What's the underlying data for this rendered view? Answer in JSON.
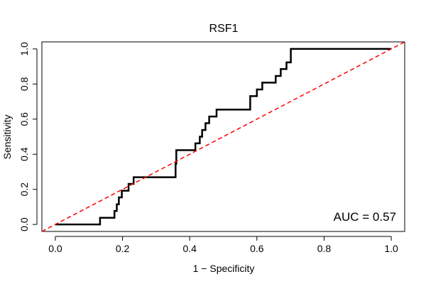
{
  "chart_data": {
    "type": "line",
    "title": "RSF1",
    "xlabel": "1 − Specificity",
    "ylabel": "Sensitivity",
    "xlim": [
      -0.04,
      1.04
    ],
    "ylim": [
      -0.04,
      1.04
    ],
    "x_ticks": [
      0.0,
      0.2,
      0.4,
      0.6,
      0.8,
      1.0
    ],
    "x_tick_labels": [
      "0.0",
      "0.2",
      "0.4",
      "0.6",
      "0.8",
      "1.0"
    ],
    "y_ticks": [
      0.0,
      0.2,
      0.4,
      0.6,
      0.8,
      1.0
    ],
    "y_tick_labels": [
      "0.0",
      "0.2",
      "0.4",
      "0.6",
      "0.8",
      "1.0"
    ],
    "grid": false,
    "annotation": "AUC = 0.57",
    "series": [
      {
        "color": "#000000",
        "style": "solid-step",
        "x": [
          0.0,
          0.133,
          0.133,
          0.176,
          0.176,
          0.183,
          0.183,
          0.189,
          0.189,
          0.198,
          0.198,
          0.218,
          0.218,
          0.233,
          0.233,
          0.247,
          0.247,
          0.358,
          0.358,
          0.36,
          0.36,
          0.417,
          0.417,
          0.43,
          0.43,
          0.437,
          0.437,
          0.447,
          0.447,
          0.458,
          0.458,
          0.48,
          0.48,
          0.58,
          0.58,
          0.6,
          0.6,
          0.616,
          0.616,
          0.656,
          0.656,
          0.671,
          0.671,
          0.688,
          0.688,
          0.701,
          0.701,
          1.0
        ],
        "y": [
          0.0,
          0.0,
          0.038,
          0.038,
          0.077,
          0.077,
          0.115,
          0.115,
          0.154,
          0.154,
          0.192,
          0.192,
          0.231,
          0.231,
          0.269,
          0.269,
          0.269,
          0.269,
          0.346,
          0.346,
          0.423,
          0.423,
          0.462,
          0.462,
          0.5,
          0.5,
          0.538,
          0.538,
          0.577,
          0.577,
          0.615,
          0.615,
          0.654,
          0.654,
          0.731,
          0.731,
          0.769,
          0.769,
          0.808,
          0.808,
          0.846,
          0.846,
          0.885,
          0.885,
          0.923,
          0.923,
          1.0,
          1.0
        ]
      },
      {
        "color": "#ff0000",
        "style": "dashed",
        "x": [
          -0.04,
          1.04
        ],
        "y": [
          -0.04,
          1.04
        ]
      }
    ]
  }
}
